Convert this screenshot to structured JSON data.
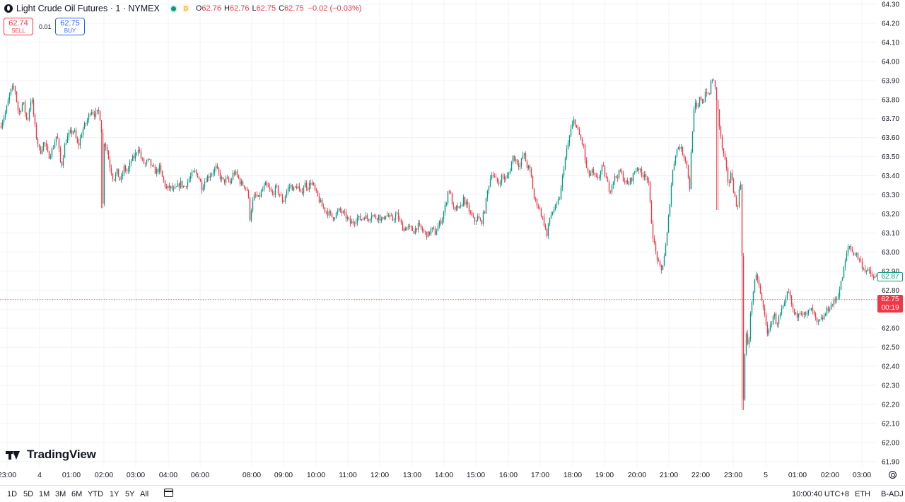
{
  "legend": {
    "title": "Light Crude Oil Futures · 1 · NYMEX",
    "delay_badge": "D",
    "ohlc": [
      {
        "k": "O",
        "v": "62.76"
      },
      {
        "k": "H",
        "v": "62.76"
      },
      {
        "k": "L",
        "v": "62.75"
      },
      {
        "k": "C",
        "v": "62.75"
      }
    ],
    "change": "−0.02 (−0.03%)"
  },
  "trade": {
    "sell_price": "62.74",
    "sell_label": "SELL",
    "spread": "0.01",
    "buy_price": "62.75",
    "buy_label": "BUY"
  },
  "logo_text": "TradingView",
  "price_tags": {
    "last": "62.87",
    "bid": "62.75",
    "countdown": "00:19"
  },
  "bottom_bar": {
    "ranges": [
      "1D",
      "5D",
      "1M",
      "3M",
      "6M",
      "YTD",
      "1Y",
      "5Y",
      "All"
    ],
    "clock": "10:00:40 UTC+8",
    "session": "ETH",
    "adjust": "B-ADJ"
  },
  "colors": {
    "up": "#089981",
    "down": "#f23645",
    "grid": "#f0f3fa",
    "text": "#131722"
  },
  "chart_data": {
    "type": "candlestick",
    "y_ticks": [
      "61.90",
      "62.00",
      "62.10",
      "62.20",
      "62.30",
      "62.40",
      "62.50",
      "62.60",
      "62.70",
      "62.80",
      "62.90",
      "63.00",
      "63.10",
      "63.20",
      "63.30",
      "63.40",
      "63.50",
      "63.60",
      "63.70",
      "63.80",
      "63.90",
      "64.00",
      "64.10",
      "64.20",
      "64.30"
    ],
    "x_ticks": [
      "23:00",
      "4",
      "01:00",
      "02:00",
      "03:00",
      "04:00",
      "06:00",
      "08:00",
      "09:00",
      "10:00",
      "11:00",
      "12:00",
      "13:00",
      "14:00",
      "15:00",
      "16:00",
      "17:00",
      "18:00",
      "19:00",
      "20:00",
      "21:00",
      "22:00",
      "23:00",
      "5",
      "01:00",
      "02:00",
      "03:00"
    ],
    "ylim": [
      61.85,
      64.32
    ],
    "grid": true,
    "current_price": 62.75,
    "path": [
      [
        0,
        63.66
      ],
      [
        8,
        63.74
      ],
      [
        14,
        63.84
      ],
      [
        20,
        63.87
      ],
      [
        26,
        63.72
      ],
      [
        32,
        63.79
      ],
      [
        38,
        63.68
      ],
      [
        44,
        63.82
      ],
      [
        50,
        63.62
      ],
      [
        56,
        63.52
      ],
      [
        62,
        63.58
      ],
      [
        68,
        63.5
      ],
      [
        74,
        63.54
      ],
      [
        80,
        63.62
      ],
      [
        86,
        63.44
      ],
      [
        92,
        63.58
      ],
      [
        98,
        63.62
      ],
      [
        104,
        63.64
      ],
      [
        110,
        63.55
      ],
      [
        116,
        63.64
      ],
      [
        122,
        63.68
      ],
      [
        128,
        63.75
      ],
      [
        134,
        63.72
      ],
      [
        140,
        63.74
      ],
      [
        143,
        63.64
      ],
      [
        145,
        63.25
      ],
      [
        147,
        63.58
      ],
      [
        150,
        63.55
      ],
      [
        155,
        63.45
      ],
      [
        160,
        63.38
      ],
      [
        165,
        63.42
      ],
      [
        170,
        63.37
      ],
      [
        175,
        63.44
      ],
      [
        180,
        63.42
      ],
      [
        185,
        63.48
      ],
      [
        190,
        63.5
      ],
      [
        195,
        63.55
      ],
      [
        200,
        63.48
      ],
      [
        205,
        63.46
      ],
      [
        210,
        63.48
      ],
      [
        215,
        63.44
      ],
      [
        220,
        63.42
      ],
      [
        225,
        63.44
      ],
      [
        230,
        63.38
      ],
      [
        235,
        63.33
      ],
      [
        240,
        63.34
      ],
      [
        245,
        63.32
      ],
      [
        250,
        63.34
      ],
      [
        255,
        63.36
      ],
      [
        260,
        63.34
      ],
      [
        265,
        63.37
      ],
      [
        270,
        63.4
      ],
      [
        275,
        63.42
      ],
      [
        280,
        63.4
      ],
      [
        285,
        63.34
      ],
      [
        290,
        63.38
      ],
      [
        295,
        63.4
      ],
      [
        300,
        63.42
      ],
      [
        305,
        63.44
      ],
      [
        310,
        63.4
      ],
      [
        315,
        63.37
      ],
      [
        320,
        63.38
      ],
      [
        325,
        63.36
      ],
      [
        330,
        63.42
      ],
      [
        335,
        63.4
      ],
      [
        340,
        63.36
      ],
      [
        345,
        63.35
      ],
      [
        350,
        63.32
      ],
      [
        353,
        63.18
      ],
      [
        356,
        63.25
      ],
      [
        360,
        63.3
      ],
      [
        365,
        63.28
      ],
      [
        370,
        63.32
      ],
      [
        375,
        63.35
      ],
      [
        380,
        63.33
      ],
      [
        385,
        63.3
      ],
      [
        390,
        63.34
      ],
      [
        395,
        63.3
      ],
      [
        400,
        63.26
      ],
      [
        405,
        63.32
      ],
      [
        410,
        63.35
      ],
      [
        415,
        63.33
      ],
      [
        420,
        63.35
      ],
      [
        425,
        63.3
      ],
      [
        430,
        63.36
      ],
      [
        435,
        63.34
      ],
      [
        440,
        63.37
      ],
      [
        445,
        63.32
      ],
      [
        450,
        63.28
      ],
      [
        455,
        63.24
      ],
      [
        460,
        63.22
      ],
      [
        465,
        63.2
      ],
      [
        470,
        63.18
      ],
      [
        475,
        63.2
      ],
      [
        480,
        63.22
      ],
      [
        485,
        63.2
      ],
      [
        490,
        63.18
      ],
      [
        495,
        63.15
      ],
      [
        500,
        63.16
      ],
      [
        505,
        63.18
      ],
      [
        510,
        63.17
      ],
      [
        515,
        63.19
      ],
      [
        520,
        63.17
      ],
      [
        525,
        63.2
      ],
      [
        530,
        63.18
      ],
      [
        535,
        63.19
      ],
      [
        540,
        63.16
      ],
      [
        545,
        63.2
      ],
      [
        550,
        63.18
      ],
      [
        555,
        63.17
      ],
      [
        560,
        63.2
      ],
      [
        565,
        63.16
      ],
      [
        570,
        63.12
      ],
      [
        575,
        63.13
      ],
      [
        580,
        63.12
      ],
      [
        585,
        63.11
      ],
      [
        590,
        63.14
      ],
      [
        595,
        63.12
      ],
      [
        600,
        63.1
      ],
      [
        605,
        63.09
      ],
      [
        610,
        63.12
      ],
      [
        615,
        63.1
      ],
      [
        620,
        63.14
      ],
      [
        625,
        63.18
      ],
      [
        630,
        63.25
      ],
      [
        634,
        63.34
      ],
      [
        638,
        63.28
      ],
      [
        642,
        63.2
      ],
      [
        646,
        63.24
      ],
      [
        650,
        63.22
      ],
      [
        655,
        63.28
      ],
      [
        660,
        63.24
      ],
      [
        665,
        63.2
      ],
      [
        670,
        63.16
      ],
      [
        675,
        63.18
      ],
      [
        680,
        63.15
      ],
      [
        685,
        63.22
      ],
      [
        690,
        63.34
      ],
      [
        695,
        63.42
      ],
      [
        700,
        63.38
      ],
      [
        705,
        63.36
      ],
      [
        710,
        63.4
      ],
      [
        715,
        63.38
      ],
      [
        720,
        63.42
      ],
      [
        725,
        63.5
      ],
      [
        730,
        63.48
      ],
      [
        735,
        63.45
      ],
      [
        740,
        63.52
      ],
      [
        745,
        63.45
      ],
      [
        750,
        63.42
      ],
      [
        755,
        63.28
      ],
      [
        760,
        63.25
      ],
      [
        765,
        63.2
      ],
      [
        770,
        63.14
      ],
      [
        773,
        63.08
      ],
      [
        777,
        63.18
      ],
      [
        782,
        63.22
      ],
      [
        787,
        63.24
      ],
      [
        792,
        63.3
      ],
      [
        797,
        63.45
      ],
      [
        802,
        63.55
      ],
      [
        807,
        63.64
      ],
      [
        812,
        63.7
      ],
      [
        815,
        63.65
      ],
      [
        820,
        63.6
      ],
      [
        825,
        63.55
      ],
      [
        828,
        63.45
      ],
      [
        832,
        63.4
      ],
      [
        837,
        63.42
      ],
      [
        842,
        63.38
      ],
      [
        847,
        63.4
      ],
      [
        852,
        63.45
      ],
      [
        857,
        63.38
      ],
      [
        862,
        63.32
      ],
      [
        867,
        63.38
      ],
      [
        872,
        63.4
      ],
      [
        877,
        63.42
      ],
      [
        882,
        63.38
      ],
      [
        887,
        63.35
      ],
      [
        892,
        63.38
      ],
      [
        897,
        63.42
      ],
      [
        902,
        63.45
      ],
      [
        907,
        63.4
      ],
      [
        912,
        63.42
      ],
      [
        917,
        63.35
      ],
      [
        920,
        63.2
      ],
      [
        924,
        63.05
      ],
      [
        928,
        62.98
      ],
      [
        932,
        62.92
      ],
      [
        935,
        62.9
      ],
      [
        938,
        62.96
      ],
      [
        942,
        63.05
      ],
      [
        946,
        63.22
      ],
      [
        950,
        63.4
      ],
      [
        955,
        63.52
      ],
      [
        960,
        63.56
      ],
      [
        965,
        63.52
      ],
      [
        970,
        63.48
      ],
      [
        975,
        63.34
      ],
      [
        978,
        63.6
      ],
      [
        982,
        63.78
      ],
      [
        986,
        63.74
      ],
      [
        990,
        63.82
      ],
      [
        994,
        63.78
      ],
      [
        998,
        63.86
      ],
      [
        1002,
        63.8
      ],
      [
        1006,
        63.92
      ],
      [
        1010,
        63.88
      ],
      [
        1014,
        63.78
      ],
      [
        1018,
        63.62
      ],
      [
        1022,
        63.52
      ],
      [
        1026,
        63.45
      ],
      [
        1030,
        63.35
      ],
      [
        1034,
        63.42
      ],
      [
        1038,
        63.3
      ],
      [
        1042,
        63.22
      ],
      [
        1045,
        63.32
      ],
      [
        1048,
        63.38
      ],
      [
        1051,
        62.22
      ],
      [
        1054,
        62.58
      ],
      [
        1058,
        62.5
      ],
      [
        1062,
        62.72
      ],
      [
        1066,
        62.82
      ],
      [
        1070,
        62.88
      ],
      [
        1074,
        62.8
      ],
      [
        1078,
        62.72
      ],
      [
        1082,
        62.65
      ],
      [
        1086,
        62.56
      ],
      [
        1090,
        62.62
      ],
      [
        1094,
        62.68
      ],
      [
        1098,
        62.62
      ],
      [
        1102,
        62.66
      ],
      [
        1106,
        62.7
      ],
      [
        1110,
        62.72
      ],
      [
        1114,
        62.8
      ],
      [
        1118,
        62.74
      ],
      [
        1122,
        62.68
      ],
      [
        1126,
        62.66
      ],
      [
        1130,
        62.7
      ],
      [
        1135,
        62.68
      ],
      [
        1140,
        62.66
      ],
      [
        1145,
        62.7
      ],
      [
        1150,
        62.68
      ],
      [
        1155,
        62.62
      ],
      [
        1160,
        62.64
      ],
      [
        1165,
        62.66
      ],
      [
        1170,
        62.7
      ],
      [
        1175,
        62.72
      ],
      [
        1180,
        62.74
      ],
      [
        1185,
        62.78
      ],
      [
        1190,
        62.85
      ],
      [
        1195,
        62.95
      ],
      [
        1200,
        63.04
      ],
      [
        1205,
        63.0
      ],
      [
        1210,
        62.99
      ],
      [
        1215,
        62.96
      ],
      [
        1220,
        62.92
      ],
      [
        1225,
        62.9
      ],
      [
        1230,
        62.89
      ],
      [
        1235,
        62.86
      ],
      [
        1240,
        62.87
      ]
    ]
  }
}
